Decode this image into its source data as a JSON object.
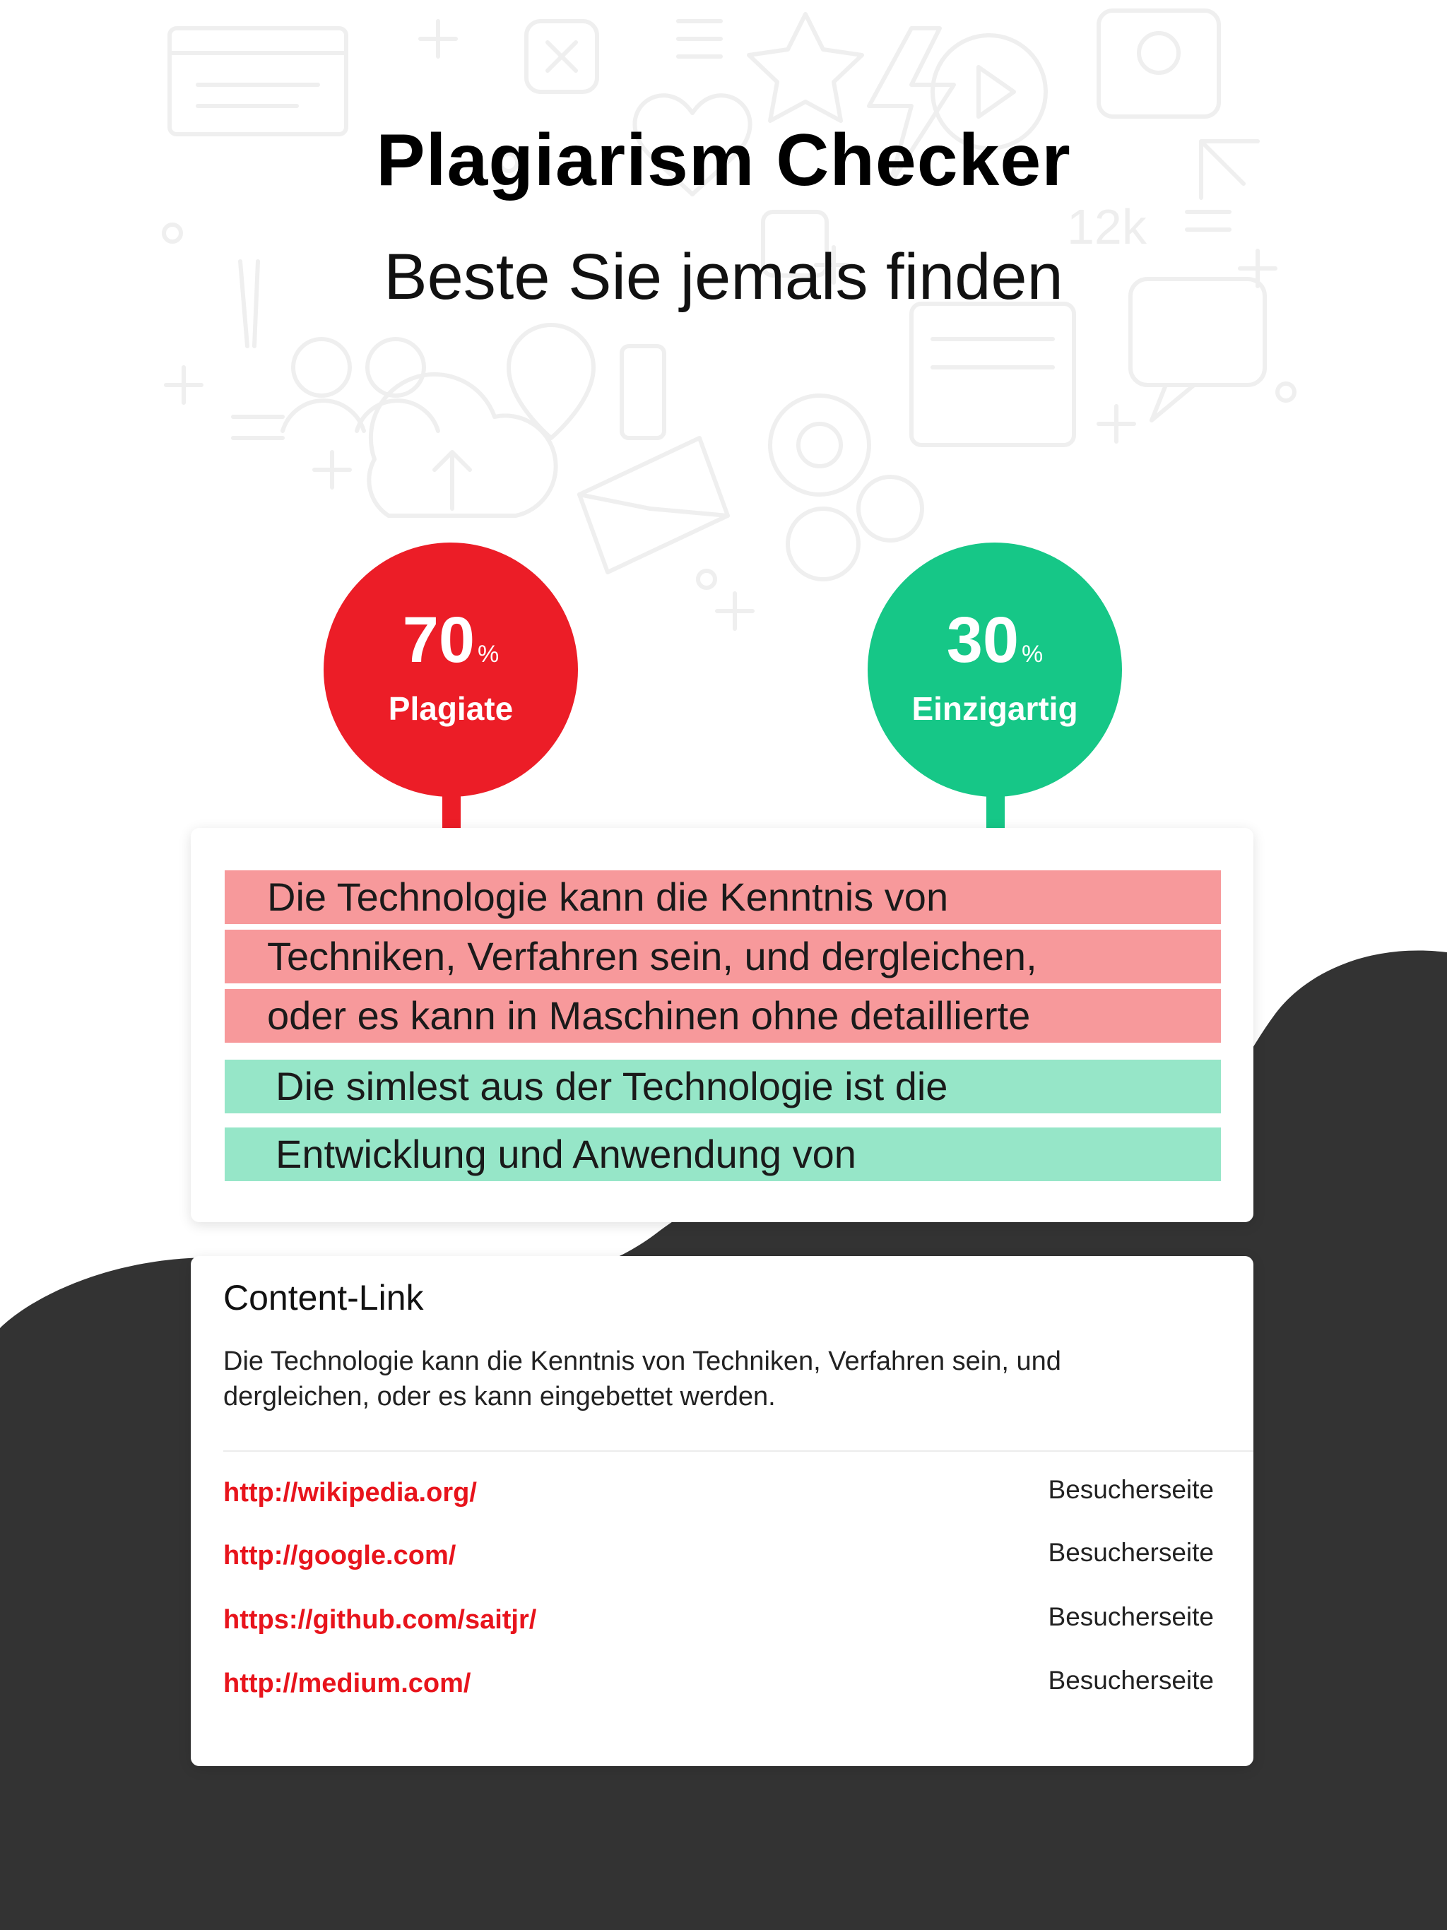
{
  "header": {
    "title": "Plagiarism Checker",
    "subtitle": "Beste Sie jemals finden"
  },
  "stats": {
    "plagiarism": {
      "value": "70",
      "unit": "%",
      "label": "Plagiate",
      "color": "#ec1d27"
    },
    "unique": {
      "value": "30",
      "unit": "%",
      "label": "Einzigartig",
      "color": "#16c787"
    }
  },
  "checked_text": {
    "plagiarized_lines": [
      "Die Technologie kann die Kenntnis von",
      "Techniken, Verfahren sein, und dergleichen,",
      "oder es kann in Maschinen ohne detaillierte"
    ],
    "unique_lines": [
      "Die simlest aus der Technologie ist die",
      "Entwicklung und Anwendung von"
    ],
    "plagiarized_color": "#f7999b",
    "unique_color": "#96e6c8"
  },
  "content_link": {
    "title": "Content-Link",
    "description": "Die Technologie kann die Kenntnis von Techniken, Verfahren sein, und dergleichen, oder es kann eingebettet werden.",
    "links": [
      {
        "url": "http://wikipedia.org/",
        "action": "Besucherseite"
      },
      {
        "url": "http://google.com/",
        "action": "Besucherseite"
      },
      {
        "url": "https://github.com/saitjr/",
        "action": "Besucherseite"
      },
      {
        "url": "http://medium.com/",
        "action": "Besucherseite"
      }
    ],
    "link_color": "#e8141c"
  },
  "theme": {
    "dark_background": "#333333",
    "pattern_color": "#f2f2f2"
  }
}
